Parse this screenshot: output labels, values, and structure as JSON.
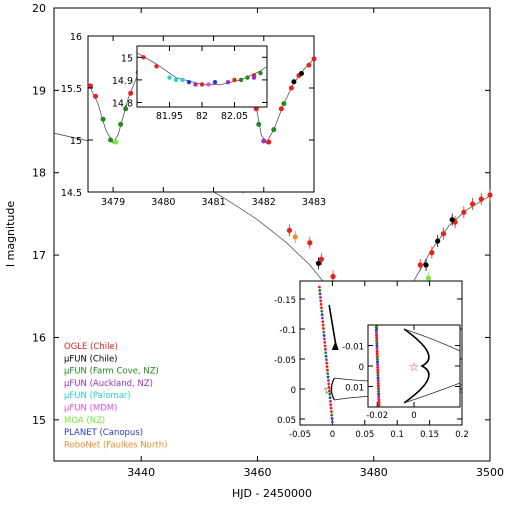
{
  "chart_data": [
    {
      "id": "main",
      "type": "scatter",
      "title": "",
      "xlabel": "HJD - 2450000",
      "ylabel": "I magnitude",
      "xlim": [
        3425,
        3500
      ],
      "ylim": [
        20,
        14.5
      ],
      "y_inverted": true,
      "x_ticks": [
        "3440",
        "3460",
        "3480",
        "3500"
      ],
      "y_ticks": [
        "15",
        "16",
        "17",
        "18",
        "19",
        "20"
      ],
      "grid": false,
      "legend_placement": "lower-left",
      "model_curve": [
        [
          3425,
          18.48
        ],
        [
          3432,
          18.37
        ],
        [
          3438,
          18.22
        ],
        [
          3444,
          18.06
        ],
        [
          3450,
          17.87
        ],
        [
          3455,
          17.66
        ],
        [
          3460,
          17.43
        ],
        [
          3465,
          17.15
        ],
        [
          3469,
          16.88
        ],
        [
          3472,
          16.62
        ],
        [
          3474,
          16.38
        ],
        [
          3476,
          16.07
        ],
        [
          3477,
          15.86
        ],
        [
          3477.6,
          15.52
        ],
        [
          3478,
          15.15
        ],
        [
          3478.3,
          15.5
        ],
        [
          3478.6,
          15.65
        ],
        [
          3479.0,
          15.5
        ],
        [
          3480.0,
          15.65
        ],
        [
          3481.0,
          15.63
        ],
        [
          3482.0,
          15.05
        ],
        [
          3482.5,
          15.6
        ],
        [
          3483,
          15.85
        ],
        [
          3485,
          16.35
        ],
        [
          3487,
          16.7
        ],
        [
          3490,
          17.07
        ],
        [
          3493,
          17.36
        ],
        [
          3496,
          17.55
        ],
        [
          3500,
          17.72
        ]
      ],
      "series": [
        {
          "name": "OGLE (Chile)",
          "color": "#e8211c",
          "points": [
            [
              3432.5,
              18.35
            ],
            [
              3438,
              18.27
            ],
            [
              3444.5,
              18.12
            ],
            [
              3448,
              18.1
            ],
            [
              3451,
              18.03
            ],
            [
              3455,
              17.83
            ],
            [
              3457.5,
              17.82
            ],
            [
              3465.5,
              17.3
            ],
            [
              3469,
              17.15
            ],
            [
              3471,
              16.95
            ],
            [
              3473,
              16.74
            ],
            [
              3475,
              16.4
            ],
            [
              3477.3,
              15.85
            ],
            [
              3478,
              15.3
            ],
            [
              3479.5,
              15.65
            ],
            [
              3481.5,
              15.62
            ],
            [
              3483,
              15.7
            ],
            [
              3484.5,
              15.95
            ],
            [
              3486.5,
              16.5
            ],
            [
              3488,
              16.88
            ],
            [
              3490,
              17.03
            ],
            [
              3492,
              17.26
            ],
            [
              3494,
              17.4
            ],
            [
              3495.5,
              17.52
            ],
            [
              3497,
              17.62
            ],
            [
              3498.5,
              17.68
            ],
            [
              3500,
              17.73
            ],
            [
              3481.0,
              15.58
            ],
            [
              3480.5,
              15.7
            ],
            [
              3476,
              16.15
            ]
          ]
        },
        {
          "name": "μFUN (Chile)",
          "color": "#000000",
          "points": [
            [
              3470.5,
              16.9
            ],
            [
              3473.5,
              16.55
            ],
            [
              3475.5,
              16.28
            ],
            [
              3477.0,
              15.9
            ],
            [
              3484,
              16.05
            ],
            [
              3486,
              16.45
            ],
            [
              3489,
              16.88
            ],
            [
              3491,
              17.17
            ],
            [
              3493.5,
              17.43
            ]
          ]
        },
        {
          "name": "μFUN (Farm Cove, NZ)",
          "color": "#1f8a1f",
          "points": [
            [
              3477.6,
              15.3
            ],
            [
              3478.1,
              15.0
            ],
            [
              3478.4,
              15.45
            ],
            [
              3481.9,
              15.12
            ],
            [
              3482.3,
              15.4
            ],
            [
              3487,
              16.55
            ]
          ]
        },
        {
          "name": "μFUN (Auckland, NZ)",
          "color": "#9b30c8",
          "points": [
            [
              3478.2,
              15.1
            ],
            [
              3482.0,
              15.05
            ],
            [
              3480.2,
              15.68
            ]
          ]
        },
        {
          "name": "μFUN (Palomar)",
          "color": "#2ad0d0",
          "points": [
            [
              3480.8,
              15.62
            ]
          ]
        },
        {
          "name": "μFUN (MDM)",
          "color": "#e050e0",
          "points": [
            [
              3481.3,
              15.6
            ]
          ]
        },
        {
          "name": "MOA (NZ)",
          "color": "#7ae83a",
          "points": [
            [
              3476.5,
              16.05
            ],
            [
              3479.2,
              15.55
            ],
            [
              3481.6,
              15.4
            ],
            [
              3486.8,
              16.55
            ],
            [
              3487.8,
              16.6
            ],
            [
              3488.6,
              16.62
            ],
            [
              3489.4,
              16.72
            ]
          ]
        },
        {
          "name": "PLANET (Canopus)",
          "color": "#2a3ad0",
          "points": [
            [
              3480.4,
              15.65
            ]
          ]
        },
        {
          "name": "RoboNet (Faulkes North)",
          "color": "#f08c2a",
          "points": [
            [
              3466.5,
              17.22
            ],
            [
              3485.5,
              16.5
            ],
            [
              3486.2,
              16.35
            ]
          ]
        }
      ]
    },
    {
      "id": "inset_lightcurve",
      "type": "scatter",
      "xlim": [
        3478.5,
        3483
      ],
      "ylim": [
        16,
        14.5
      ],
      "y_inverted": true,
      "x_ticks": [
        "3479",
        "3480",
        "3481",
        "3482",
        "3483"
      ],
      "y_ticks": [
        "14.5",
        "15",
        "15.5",
        "16"
      ],
      "model_curve": [
        [
          3478.5,
          15.55
        ],
        [
          3478.7,
          15.35
        ],
        [
          3478.85,
          15.1
        ],
        [
          3479.0,
          14.97
        ],
        [
          3479.1,
          15.05
        ],
        [
          3479.3,
          15.4
        ],
        [
          3479.55,
          15.7
        ],
        [
          3479.8,
          15.83
        ],
        [
          3480.2,
          15.85
        ],
        [
          3480.6,
          15.82
        ],
        [
          3481.0,
          15.8
        ],
        [
          3481.3,
          15.8
        ],
        [
          3481.6,
          15.72
        ],
        [
          3481.8,
          15.45
        ],
        [
          3481.95,
          15.05
        ],
        [
          3482.05,
          14.97
        ],
        [
          3482.2,
          15.1
        ],
        [
          3482.4,
          15.35
        ],
        [
          3482.6,
          15.55
        ],
        [
          3482.8,
          15.68
        ],
        [
          3483.0,
          15.78
        ]
      ],
      "series": [
        {
          "name": "OGLE (Chile)",
          "color": "#e8211c",
          "points": [
            [
              3478.55,
              15.52
            ],
            [
              3478.65,
              15.42
            ],
            [
              3479.35,
              15.45
            ],
            [
              3479.5,
              15.65
            ],
            [
              3479.7,
              15.8
            ],
            [
              3479.9,
              15.84
            ],
            [
              3480.1,
              15.85
            ],
            [
              3480.3,
              15.82
            ],
            [
              3480.8,
              15.8
            ],
            [
              3481.1,
              15.79
            ],
            [
              3481.4,
              15.8
            ],
            [
              3481.6,
              15.72
            ],
            [
              3481.85,
              15.3
            ],
            [
              3482.1,
              14.98
            ],
            [
              3482.35,
              15.3
            ],
            [
              3482.55,
              15.5
            ],
            [
              3482.7,
              15.62
            ],
            [
              3482.9,
              15.72
            ],
            [
              3483.0,
              15.78
            ]
          ]
        },
        {
          "name": "μFUN (Chile)",
          "color": "#000000",
          "points": [
            [
              3482.6,
              15.56
            ],
            [
              3482.75,
              15.64
            ]
          ]
        },
        {
          "name": "μFUN (Farm Cove, NZ)",
          "color": "#1f8a1f",
          "points": [
            [
              3478.8,
              15.2
            ],
            [
              3478.95,
              15.0
            ],
            [
              3479.15,
              15.15
            ],
            [
              3479.25,
              15.3
            ],
            [
              3481.9,
              15.15
            ],
            [
              3482.2,
              15.1
            ],
            [
              3482.4,
              15.35
            ]
          ]
        },
        {
          "name": "μFUN (Auckland, NZ)",
          "color": "#9b30c8",
          "points": [
            [
              3480.45,
              15.8
            ],
            [
              3480.6,
              15.79
            ],
            [
              3482.0,
              14.99
            ]
          ]
        },
        {
          "name": "μFUN (Palomar)",
          "color": "#2ad0d0",
          "points": [
            [
              3480.7,
              15.81
            ]
          ]
        },
        {
          "name": "MOA (NZ)",
          "color": "#7ae83a",
          "points": [
            [
              3479.05,
              14.98
            ],
            [
              3481.75,
              15.45
            ]
          ]
        },
        {
          "name": "PLANET (Canopus)",
          "color": "#2a3ad0",
          "points": [
            [
              3480.55,
              15.81
            ]
          ]
        }
      ]
    },
    {
      "id": "inset_peak",
      "type": "scatter",
      "xlim": [
        3481.9,
        3482.1
      ],
      "ylim": [
        15.05,
        14.78
      ],
      "y_inverted": true,
      "x_ticks": [
        "81.95",
        "82",
        "82.05"
      ],
      "y_ticks": [
        "14.8",
        "14.9",
        "15"
      ],
      "model_curve": [
        [
          3481.9,
          15.02
        ],
        [
          3481.93,
          14.97
        ],
        [
          3481.96,
          14.91
        ],
        [
          3482.0,
          14.88
        ],
        [
          3482.03,
          14.88
        ],
        [
          3482.06,
          14.9
        ],
        [
          3482.09,
          14.94
        ],
        [
          3482.1,
          14.96
        ]
      ],
      "series": [
        {
          "name": "OGLE (Chile)",
          "color": "#e8211c",
          "points": [
            [
              3481.91,
              15.0
            ],
            [
              3481.93,
              14.96
            ],
            [
              3482.0,
              14.88
            ],
            [
              3482.05,
              14.9
            ],
            [
              3482.08,
              14.92
            ]
          ]
        },
        {
          "name": "μFUN (Farm Cove, NZ)",
          "color": "#1f8a1f",
          "points": [
            [
              3482.06,
              14.9
            ],
            [
              3482.07,
              14.91
            ],
            [
              3482.09,
              14.93
            ]
          ]
        },
        {
          "name": "μFUN (Auckland, NZ)",
          "color": "#9b30c8",
          "points": [
            [
              3481.99,
              14.88
            ],
            [
              3482.04,
              14.89
            ],
            [
              3482.08,
              14.91
            ]
          ]
        },
        {
          "name": "μFUN (Palomar)",
          "color": "#2ad0d0",
          "points": [
            [
              3481.95,
              14.91
            ],
            [
              3481.96,
              14.9
            ],
            [
              3481.97,
              14.9
            ]
          ]
        },
        {
          "name": "μFUN (MDM)",
          "color": "#e050e0",
          "points": [
            [
              3482.01,
              14.88
            ]
          ]
        },
        {
          "name": "PLANET (Canopus)",
          "color": "#2a3ad0",
          "points": [
            [
              3481.98,
              14.89
            ],
            [
              3482.02,
              14.89
            ]
          ]
        }
      ]
    },
    {
      "id": "inset_caustic",
      "type": "line",
      "xlim": [
        -0.05,
        0.2
      ],
      "ylim": [
        -0.18,
        0.06
      ],
      "x_ticks": [
        "-0.05",
        "0",
        "0.05",
        "0.1",
        "0.15",
        "0.2"
      ],
      "y_ticks": [
        "0.05",
        "0",
        "-0.05",
        "-0.1",
        "-0.15"
      ]
    },
    {
      "id": "inset_caustic_zoom",
      "type": "line",
      "xlim": [
        -0.025,
        0.025
      ],
      "ylim": [
        -0.02,
        0.02
      ],
      "x_ticks": [
        "-0.02",
        "0"
      ],
      "y_ticks": [
        "0.01",
        "0",
        "-0.01"
      ]
    }
  ]
}
